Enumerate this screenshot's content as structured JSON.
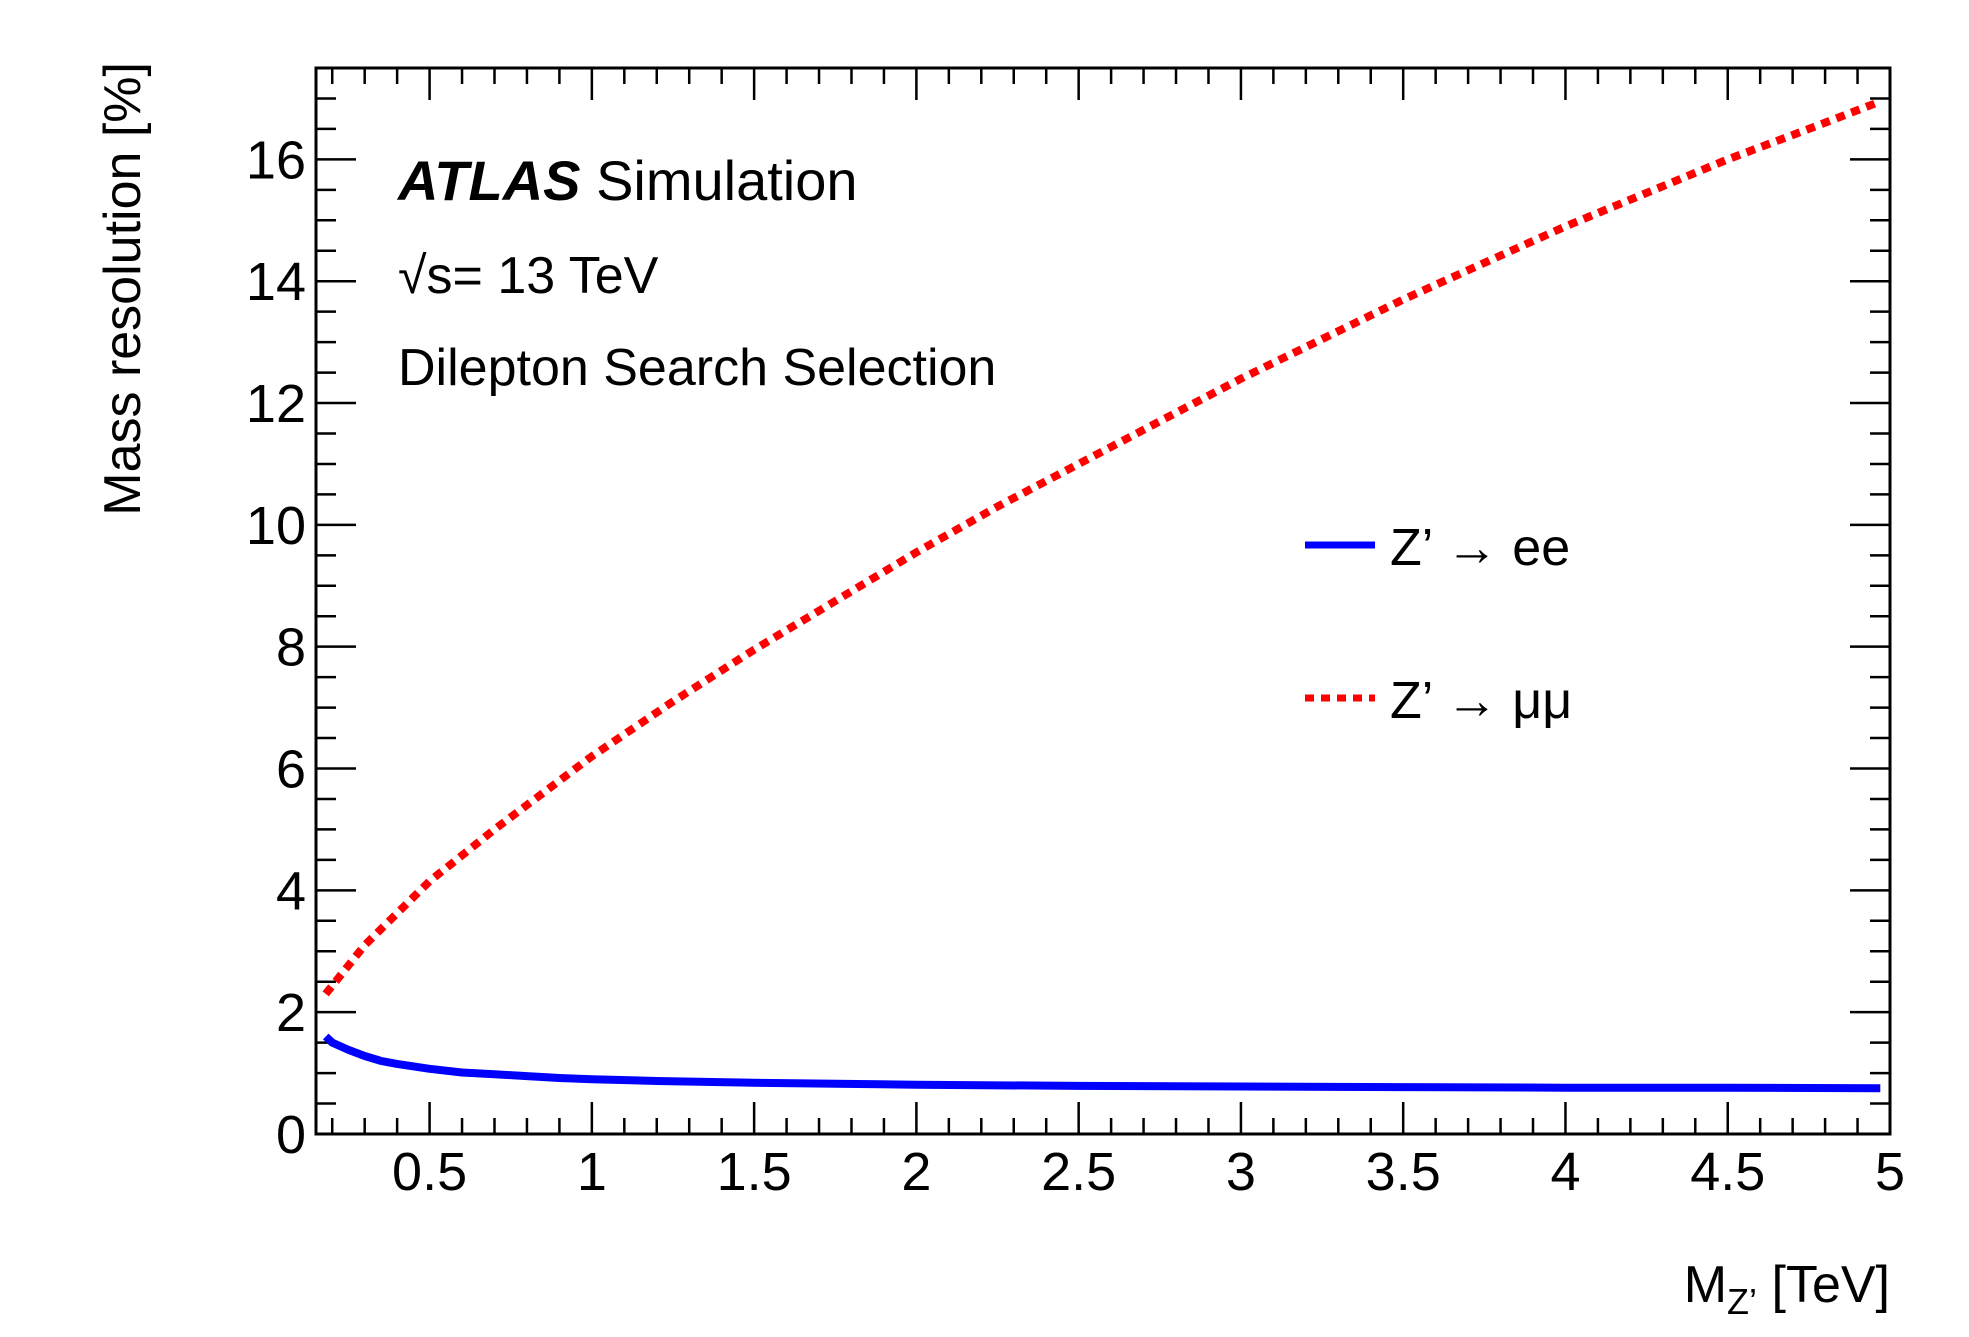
{
  "chart_data": {
    "type": "line",
    "xlabel": {
      "main": "M",
      "sub": "Z’",
      "unit": " [TeV]"
    },
    "ylabel": "Mass resolution [%]",
    "xlim": [
      0.15,
      5.0
    ],
    "ylim": [
      0,
      17.5
    ],
    "x_ticks": [
      0.5,
      1,
      1.5,
      2,
      2.5,
      3,
      3.5,
      4,
      4.5,
      5
    ],
    "x_tick_labels": [
      "0.5",
      "1",
      "1.5",
      "2",
      "2.5",
      "3",
      "3.5",
      "4",
      "4.5",
      "5"
    ],
    "y_ticks": [
      0,
      2,
      4,
      6,
      8,
      10,
      12,
      14,
      16
    ],
    "y_tick_labels": [
      "0",
      "2",
      "4",
      "6",
      "8",
      "10",
      "12",
      "14",
      "16"
    ],
    "annotations": {
      "experiment": "ATLAS",
      "status": "Simulation",
      "energy_sqrt": "√s",
      "energy": "= 13 TeV",
      "selection": "Dilepton Search Selection"
    },
    "legend_position": "right",
    "series": [
      {
        "name": "Z’ → ee",
        "color": "#0000ff",
        "style": "solid",
        "x": [
          0.18,
          0.2,
          0.25,
          0.3,
          0.35,
          0.4,
          0.5,
          0.6,
          0.7,
          0.8,
          0.9,
          1.0,
          1.2,
          1.5,
          2.0,
          2.5,
          3.0,
          3.5,
          4.0,
          4.5,
          4.97
        ],
        "y": [
          1.6,
          1.5,
          1.38,
          1.28,
          1.2,
          1.15,
          1.07,
          1.01,
          0.98,
          0.95,
          0.92,
          0.9,
          0.87,
          0.84,
          0.81,
          0.79,
          0.78,
          0.77,
          0.76,
          0.76,
          0.75
        ]
      },
      {
        "name": "Z’ → μμ",
        "color": "#ff0000",
        "style": "dotted",
        "x": [
          0.18,
          0.3,
          0.5,
          0.7,
          1.0,
          1.25,
          1.5,
          1.75,
          2.0,
          2.25,
          2.5,
          2.75,
          3.0,
          3.25,
          3.5,
          3.75,
          4.0,
          4.25,
          4.5,
          4.75,
          4.97
        ],
        "y": [
          2.3,
          3.1,
          4.15,
          5.0,
          6.2,
          7.1,
          7.95,
          8.75,
          9.55,
          10.3,
          11.0,
          11.7,
          12.4,
          13.05,
          13.7,
          14.3,
          14.9,
          15.45,
          16.0,
          16.5,
          16.95
        ]
      }
    ]
  }
}
